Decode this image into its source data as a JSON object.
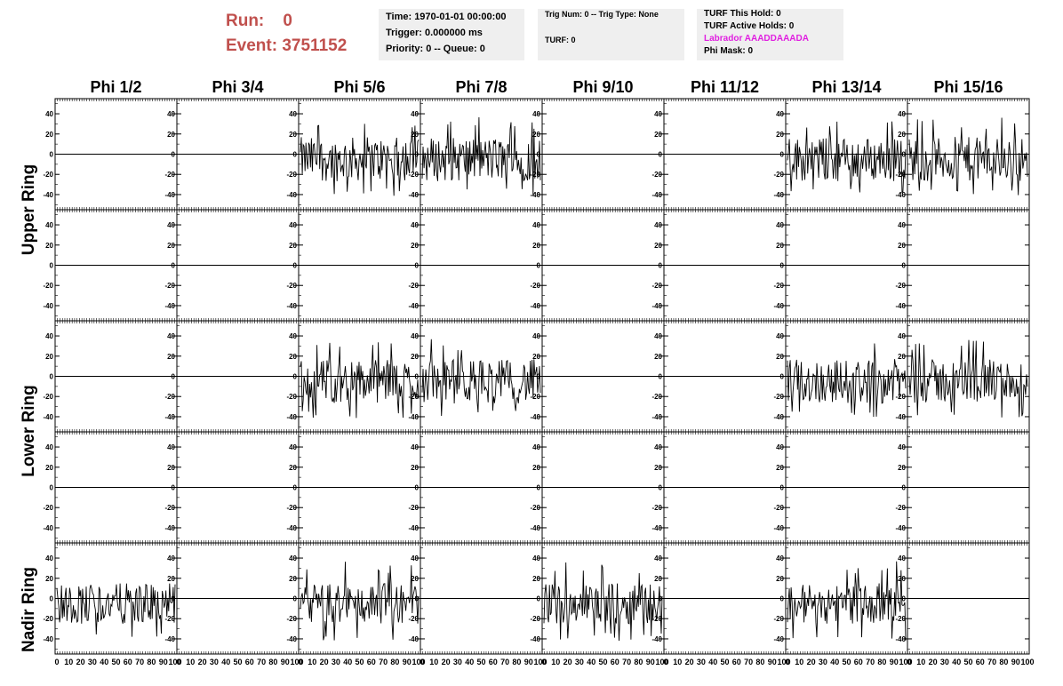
{
  "header": {
    "run_label": "Run:",
    "run_value": "0",
    "event_label": "Event:",
    "event_value": "3751152"
  },
  "info_time": {
    "time": "Time: 1970-01-01 00:00:00",
    "trigger": "Trigger: 0.000000 ms",
    "priority": "Priority: 0 -- Queue: 0"
  },
  "info_trig": {
    "trig": "Trig Num: 0 -- Trig Type: None",
    "turf": "TURF: 0"
  },
  "info_turf": {
    "this_hold": "TURF This Hold: 0",
    "active_holds": "TURF Active Holds: 0",
    "labrador": "Labrador AAADDAAADA",
    "phi_mask": "Phi Mask: 0"
  },
  "columns": [
    "Phi 1/2",
    "Phi 3/4",
    "Phi 5/6",
    "Phi 7/8",
    "Phi 9/10",
    "Phi 11/12",
    "Phi 13/14",
    "Phi 15/16"
  ],
  "rows": [
    "Upper Ring",
    "Lower Ring",
    "Nadir Ring"
  ],
  "axis": {
    "y_ticks": [
      "40",
      "20",
      "0",
      "-20",
      "-40"
    ],
    "x_ticks": [
      "0",
      "10",
      "20",
      "30",
      "40",
      "50",
      "60",
      "70",
      "80",
      "90",
      "100"
    ]
  },
  "waveforms": {
    "active_panels": [
      {
        "row": 0,
        "col": 2
      },
      {
        "row": 0,
        "col": 3
      },
      {
        "row": 0,
        "col": 6
      },
      {
        "row": 0,
        "col": 7
      },
      {
        "row": 2,
        "col": 2
      },
      {
        "row": 2,
        "col": 3
      },
      {
        "row": 2,
        "col": 6
      },
      {
        "row": 2,
        "col": 7
      },
      {
        "row": 4,
        "col": 0
      },
      {
        "row": 4,
        "col": 2
      },
      {
        "row": 4,
        "col": 4
      },
      {
        "row": 4,
        "col": 6
      }
    ]
  },
  "colors": {
    "run_text": "#c0504d",
    "labrador_text": "#e020e0",
    "info_bg": "#efefef"
  }
}
